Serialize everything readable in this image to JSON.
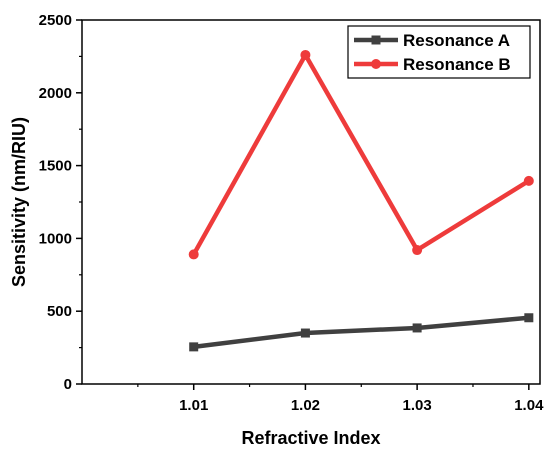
{
  "chart_data": {
    "type": "line",
    "title": "",
    "xlabel": "Refractive Index",
    "ylabel": "Sensitivity (nm/RIU)",
    "x": [
      1.01,
      1.02,
      1.03,
      1.04
    ],
    "x_tick_labels": [
      "1.01",
      "1.02",
      "1.03",
      "1.04"
    ],
    "xlim": [
      1.0,
      1.041
    ],
    "ylim": [
      0,
      2500
    ],
    "y_ticks": [
      0,
      500,
      1000,
      1500,
      2000,
      2500
    ],
    "y_tick_labels": [
      "0",
      "500",
      "1000",
      "1500",
      "2000",
      "2500"
    ],
    "grid": false,
    "legend_position": "top-right",
    "series": [
      {
        "name": "Resonance A",
        "values": [
          255,
          350,
          385,
          455
        ],
        "color": "#404040",
        "marker": "square"
      },
      {
        "name": "Resonance B",
        "values": [
          890,
          2260,
          920,
          1395
        ],
        "color": "#ee3b3b",
        "marker": "circle"
      }
    ]
  }
}
